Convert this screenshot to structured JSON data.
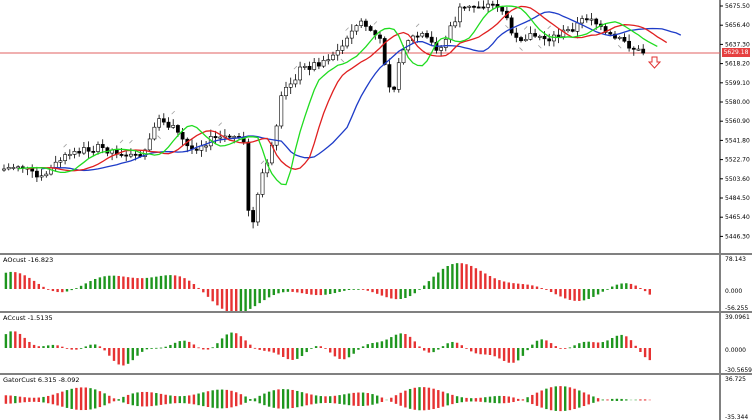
{
  "colors": {
    "bull_candle": "#ffffff",
    "bear_candle": "#000000",
    "jaw_line": "#1e3cc8",
    "teeth_line": "#e02020",
    "lips_line": "#20dc20",
    "hist_up": "#1e961e",
    "hist_down": "#e63232",
    "price_line": "#e06060",
    "fractal": "#a0a0a0"
  },
  "main": {
    "price_axis": [
      "5675.50",
      "5656.40",
      "5637.30",
      "5618.20",
      "5599.10",
      "5580.00",
      "5560.90",
      "5541.80",
      "5522.70",
      "5503.60",
      "5484.50",
      "5465.40",
      "5446.30"
    ],
    "current_price_tag": "5629.18",
    "sell_arrow_icon": "arrow-down-icon"
  },
  "indicator1": {
    "title": "AOcust -16.823",
    "axis": [
      "78.143",
      "0.000",
      "-56.255"
    ]
  },
  "indicator2": {
    "title": "ACcust -1.5135",
    "axis": [
      "39.0961",
      "0.0000",
      "-30.5659"
    ]
  },
  "indicator3": {
    "title": "GatorCust 6.315 -8.092",
    "axis": [
      "36.725",
      "-35.344"
    ]
  }
}
